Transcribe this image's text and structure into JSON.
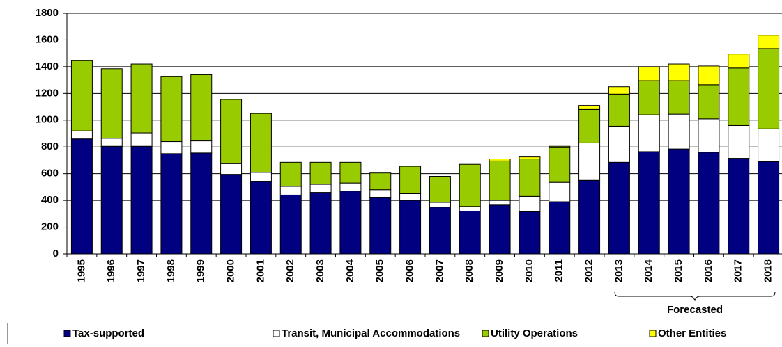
{
  "chart_data": {
    "type": "bar",
    "stacked": true,
    "categories": [
      "1995",
      "1996",
      "1997",
      "1998",
      "1999",
      "2000",
      "2001",
      "2002",
      "2003",
      "2004",
      "2005",
      "2006",
      "2007",
      "2008",
      "2009",
      "2010",
      "2011",
      "2012",
      "2013",
      "2014",
      "2015",
      "2016",
      "2017",
      "2018"
    ],
    "series": [
      {
        "name": "Tax-supported",
        "color": "#000080",
        "values": [
          860,
          805,
          805,
          750,
          755,
          595,
          540,
          440,
          460,
          470,
          420,
          400,
          350,
          320,
          365,
          315,
          390,
          550,
          685,
          765,
          785,
          760,
          715,
          690
        ]
      },
      {
        "name": "Transit, Municipal Accommodations",
        "color": "#ffffff",
        "values": [
          60,
          60,
          100,
          90,
          90,
          80,
          70,
          65,
          60,
          60,
          60,
          50,
          35,
          35,
          35,
          115,
          145,
          280,
          270,
          275,
          260,
          250,
          245,
          245
        ]
      },
      {
        "name": "Utility Operations",
        "color": "#99cc00",
        "values": [
          525,
          520,
          515,
          485,
          495,
          480,
          440,
          180,
          165,
          155,
          125,
          205,
          195,
          315,
          295,
          280,
          260,
          250,
          240,
          255,
          250,
          255,
          430,
          600
        ]
      },
      {
        "name": "Other Entities",
        "color": "#ffff00",
        "values": [
          0,
          0,
          0,
          0,
          0,
          0,
          0,
          0,
          0,
          0,
          0,
          0,
          0,
          0,
          15,
          15,
          10,
          30,
          55,
          105,
          125,
          140,
          105,
          100
        ]
      }
    ],
    "annotation": "Forecasted",
    "ylim": [
      0,
      1800
    ],
    "yticks": [
      0,
      200,
      400,
      600,
      800,
      1000,
      1200,
      1400,
      1600,
      1800
    ],
    "grid": true,
    "legend": "bottom"
  }
}
